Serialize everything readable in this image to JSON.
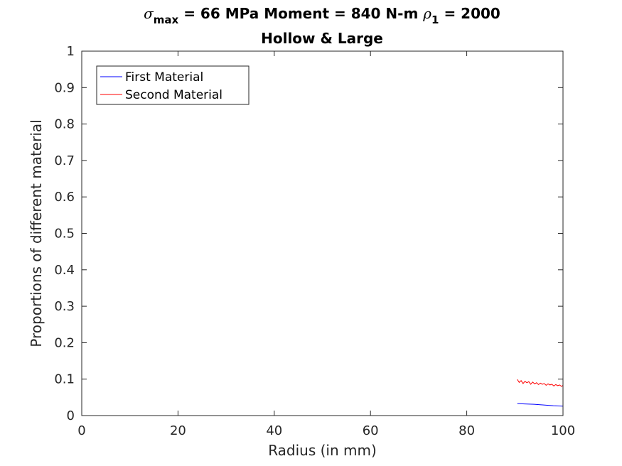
{
  "chart_data": {
    "type": "line",
    "title": {
      "line1": [
        {
          "text": "σ",
          "style": "italic"
        },
        {
          "text": "max",
          "style": "sub"
        },
        {
          "text": " = 66 MPa Moment = 840 N-m  ",
          "style": "normal"
        },
        {
          "text": "ρ",
          "style": "italic"
        },
        {
          "text": "1",
          "style": "sub"
        },
        {
          "text": " = 2000",
          "style": "normal"
        }
      ],
      "line2": "Hollow & Large"
    },
    "xlabel": "Radius (in mm)",
    "ylabel": "Proportions of different material",
    "xlim": [
      0,
      100
    ],
    "ylim": [
      0,
      1
    ],
    "xticks": [
      0,
      20,
      40,
      60,
      80,
      100
    ],
    "yticks": [
      0,
      0.1,
      0.2,
      0.3,
      0.4,
      0.5,
      0.6,
      0.7,
      0.8,
      0.9,
      1
    ],
    "ytick_labels": [
      "0",
      "0.1",
      "0.2",
      "0.3",
      "0.4",
      "0.5",
      "0.6",
      "0.7",
      "0.8",
      "0.9",
      "1"
    ],
    "grid": false,
    "legend_position": "top-left",
    "series": [
      {
        "name": "First Material",
        "color": "#0000ff",
        "x": [
          90.5,
          92,
          94,
          96,
          98,
          100
        ],
        "y": [
          0.033,
          0.032,
          0.031,
          0.029,
          0.027,
          0.026
        ]
      },
      {
        "name": "Second Material",
        "color": "#ff0000",
        "x": [
          90.5,
          90.9,
          91.3,
          91.7,
          92.1,
          92.5,
          92.9,
          93.3,
          93.7,
          94.1,
          94.5,
          94.9,
          95.3,
          95.7,
          96.1,
          96.5,
          96.9,
          97.3,
          97.7,
          98.1,
          98.5,
          98.9,
          99.3,
          99.7,
          100
        ],
        "y": [
          0.099,
          0.091,
          0.096,
          0.088,
          0.094,
          0.09,
          0.093,
          0.086,
          0.092,
          0.087,
          0.09,
          0.085,
          0.089,
          0.086,
          0.088,
          0.083,
          0.087,
          0.084,
          0.086,
          0.081,
          0.085,
          0.082,
          0.084,
          0.08,
          0.083
        ]
      }
    ]
  }
}
